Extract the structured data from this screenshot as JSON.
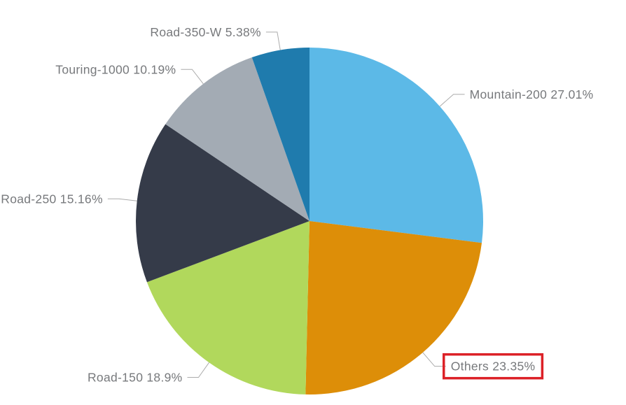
{
  "page": {
    "background": "#ffffff"
  },
  "chart_data": {
    "type": "pie",
    "title": "",
    "legend_position": "none",
    "labels_outside": true,
    "start_angle": "top",
    "direction": "clockwise",
    "label_format": "{name} {value}%",
    "label_text_color": "#77797C",
    "leader_line_color": "#ABABAB",
    "highlight_box_color": "#DC2127",
    "slices": [
      {
        "name": "Mountain-200",
        "value": 27.01,
        "label": "Mountain-200 27.01%",
        "color": "#5CB9E7",
        "highlighted": false
      },
      {
        "name": "Others",
        "value": 23.35,
        "label": "Others 23.35%",
        "color": "#DD8E08",
        "highlighted": true
      },
      {
        "name": "Road-150",
        "value": 18.9,
        "label": "Road-150 18.9%",
        "color": "#B1D85C",
        "highlighted": false
      },
      {
        "name": "Road-250",
        "value": 15.16,
        "label": "Road-250 15.16%",
        "color": "#353B49",
        "highlighted": false
      },
      {
        "name": "Touring-1000",
        "value": 10.19,
        "label": "Touring-1000 10.19%",
        "color": "#A3ABB4",
        "highlighted": false
      },
      {
        "name": "Road-350-W",
        "value": 5.38,
        "label": "Road-350-W 5.38%",
        "color": "#1F7BAD",
        "highlighted": false
      }
    ]
  }
}
